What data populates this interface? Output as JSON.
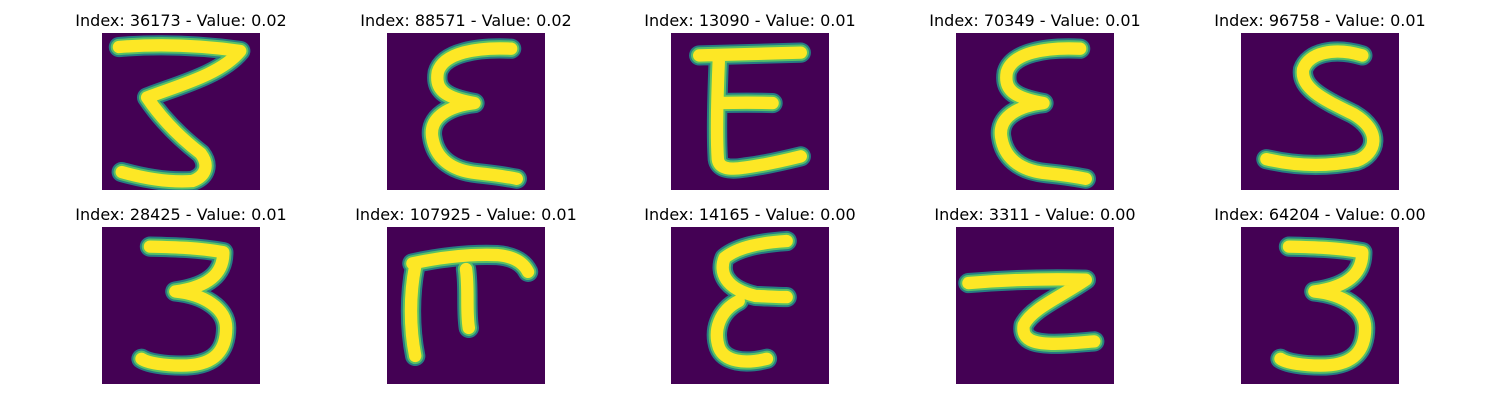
{
  "figure": {
    "background": "#ffffff",
    "colormap": "viridis",
    "panels": [
      {
        "title": "Index: 36173 - Value: 0.02",
        "index": 36173,
        "value": 0.02,
        "glyph": "3-slanted"
      },
      {
        "title": "Index: 88571 - Value: 0.02",
        "index": 88571,
        "value": 0.02,
        "glyph": "curly-epsilon"
      },
      {
        "title": "Index: 13090 - Value: 0.01",
        "index": 13090,
        "value": 0.01,
        "glyph": "E-open"
      },
      {
        "title": "Index: 70349 - Value: 0.01",
        "index": 70349,
        "value": 0.01,
        "glyph": "curly-epsilon"
      },
      {
        "title": "Index: 96758 - Value: 0.01",
        "index": 96758,
        "value": 0.01,
        "glyph": "S"
      },
      {
        "title": "Index: 28425 - Value: 0.01",
        "index": 28425,
        "value": 0.01,
        "glyph": "3"
      },
      {
        "title": "Index: 107925 - Value: 0.01",
        "index": 107925,
        "value": 0.01,
        "glyph": "pi-like"
      },
      {
        "title": "Index: 14165 - Value: 0.00",
        "index": 14165,
        "value": 0.0,
        "glyph": "epsilon"
      },
      {
        "title": "Index: 3311 - Value: 0.00",
        "index": 3311,
        "value": 0.0,
        "glyph": "bar-hook"
      },
      {
        "title": "Index: 64204 - Value: 0.00",
        "index": 64204,
        "value": 0.0,
        "glyph": "3"
      }
    ],
    "colors": {
      "background_pixel": "#440154",
      "stroke_core": "#fde725",
      "stroke_edge": "#21918c",
      "stroke_mid": "#5ec962"
    }
  }
}
